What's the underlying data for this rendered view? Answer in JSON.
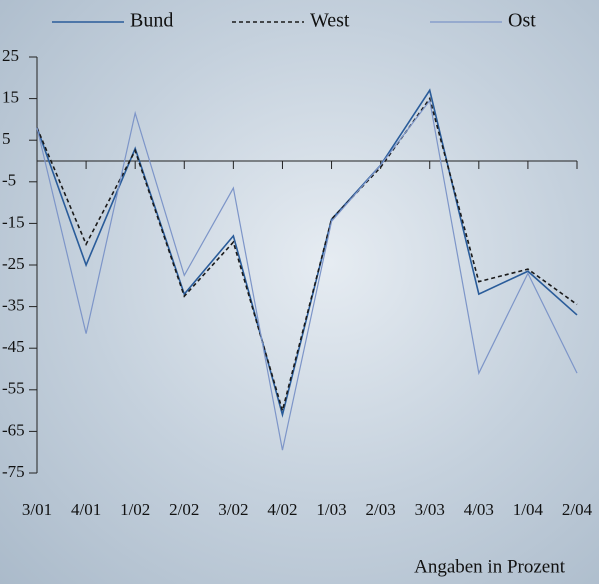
{
  "chart_data": {
    "type": "line",
    "categories": [
      "3/01",
      "4/01",
      "1/02",
      "2/02",
      "3/02",
      "4/02",
      "1/03",
      "2/03",
      "3/03",
      "4/03",
      "1/04",
      "2/04"
    ],
    "series": [
      {
        "name": "Bund",
        "color": "#2a5c9a",
        "dash": "solid",
        "values": [
          8,
          -25,
          3,
          -32,
          -18,
          -61,
          -14,
          -1,
          17,
          -32,
          -26.5,
          -37
        ]
      },
      {
        "name": "West",
        "color": "#1a1a1a",
        "dash": "dashed",
        "values": [
          8,
          -20,
          2.5,
          -32.5,
          -19.5,
          -60,
          -14,
          -1.5,
          15,
          -29,
          -26,
          -34.5
        ]
      },
      {
        "name": "Ost",
        "color": "#7d95c8",
        "dash": "solid",
        "values": [
          8,
          -41.5,
          11.5,
          -27.5,
          -6.5,
          -69.5,
          -14.5,
          -1,
          14.5,
          -51,
          -27,
          -51
        ]
      }
    ],
    "ylim": [
      -75,
      25
    ],
    "yticks": [
      25,
      15,
      5,
      -5,
      -15,
      -25,
      -35,
      -45,
      -55,
      -65,
      -75
    ],
    "annotation": "Angaben in Prozent"
  }
}
